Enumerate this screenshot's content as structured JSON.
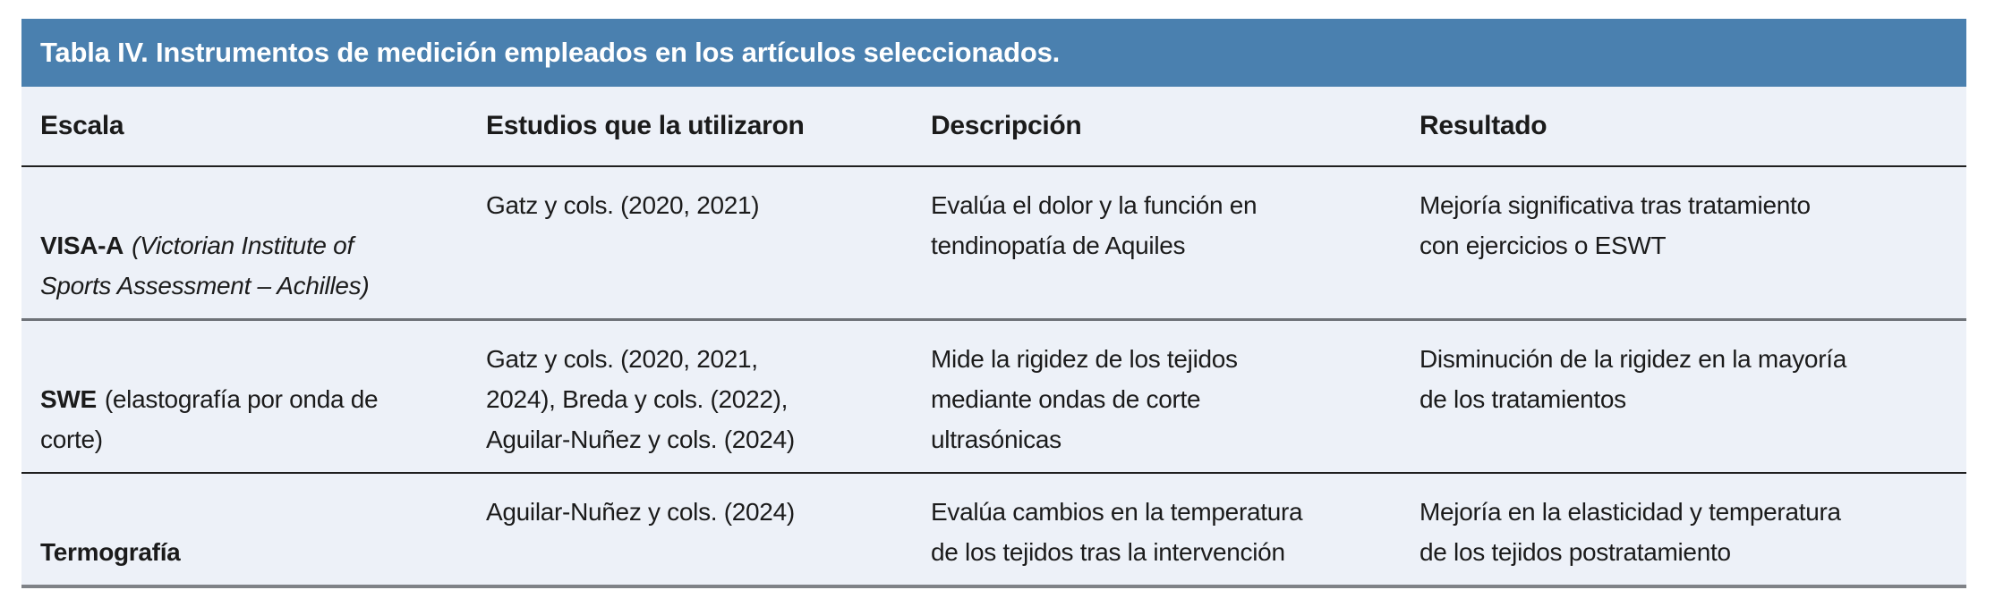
{
  "title": "Tabla IV. Instrumentos de medición empleados en los artículos seleccionados.",
  "columns": [
    "Escala",
    "Estudios que la utilizaron",
    "Descripción",
    "Resultado"
  ],
  "rows": [
    {
      "escala_name": "VISA-A",
      "escala_detail": "(Victorian Institute of\nSports Assessment – Achilles)",
      "estudios": "Gatz y cols. (2020, 2021)",
      "descripcion": "Evalúa el dolor y la función en\ntendinopatía de Aquiles",
      "resultado": "Mejoría significativa tras tratamiento\ncon ejercicios o ESWT"
    },
    {
      "escala_name": "SWE",
      "escala_detail": "(elastografía por onda de\ncorte)",
      "estudios": "Gatz y cols. (2020, 2021,\n2024), Breda y cols. (2022),\nAguilar-Nuñez y cols. (2024)",
      "descripcion": "Mide la rigidez de los tejidos\nmediante ondas de corte\nultrasónicas",
      "resultado": "Disminución de la rigidez en la mayoría\nde los tratamientos"
    },
    {
      "escala_name": "Termografía",
      "escala_detail": "",
      "estudios": "Aguilar-Nuñez y cols. (2024)",
      "descripcion": "Evalúa cambios en la temperatura\nde los tejidos tras la intervención",
      "resultado": "Mejoría en la elasticidad y temperatura\nde los tejidos postratamiento"
    }
  ],
  "colors": {
    "title-bg": "#4A80AF",
    "title-text": "#FFFFFF",
    "table-bg": "#EDF1F8",
    "text": "#1B1B1B",
    "line-dark": "#1F1F1F",
    "line-gray": "#6E7278",
    "line-bottom": "#7F8287",
    "page-bg": "#FFFFFF"
  }
}
